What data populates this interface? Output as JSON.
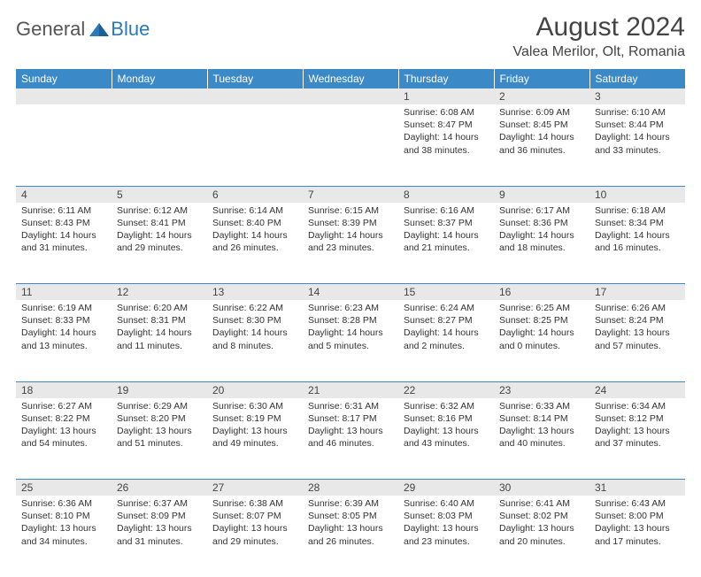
{
  "logo": {
    "general": "General",
    "blue": "Blue"
  },
  "title": "August 2024",
  "location": "Valea Merilor, Olt, Romania",
  "colors": {
    "header_bg": "#3b89c7",
    "header_text": "#ffffff",
    "daynum_bg": "#e8e8e8",
    "border": "#3b89c7",
    "logo_blue": "#2a7ab9"
  },
  "weekdays": [
    "Sunday",
    "Monday",
    "Tuesday",
    "Wednesday",
    "Thursday",
    "Friday",
    "Saturday"
  ],
  "weeks": [
    [
      null,
      null,
      null,
      null,
      {
        "n": "1",
        "sr": "Sunrise: 6:08 AM",
        "ss": "Sunset: 8:47 PM",
        "d1": "Daylight: 14 hours",
        "d2": "and 38 minutes."
      },
      {
        "n": "2",
        "sr": "Sunrise: 6:09 AM",
        "ss": "Sunset: 8:45 PM",
        "d1": "Daylight: 14 hours",
        "d2": "and 36 minutes."
      },
      {
        "n": "3",
        "sr": "Sunrise: 6:10 AM",
        "ss": "Sunset: 8:44 PM",
        "d1": "Daylight: 14 hours",
        "d2": "and 33 minutes."
      }
    ],
    [
      {
        "n": "4",
        "sr": "Sunrise: 6:11 AM",
        "ss": "Sunset: 8:43 PM",
        "d1": "Daylight: 14 hours",
        "d2": "and 31 minutes."
      },
      {
        "n": "5",
        "sr": "Sunrise: 6:12 AM",
        "ss": "Sunset: 8:41 PM",
        "d1": "Daylight: 14 hours",
        "d2": "and 29 minutes."
      },
      {
        "n": "6",
        "sr": "Sunrise: 6:14 AM",
        "ss": "Sunset: 8:40 PM",
        "d1": "Daylight: 14 hours",
        "d2": "and 26 minutes."
      },
      {
        "n": "7",
        "sr": "Sunrise: 6:15 AM",
        "ss": "Sunset: 8:39 PM",
        "d1": "Daylight: 14 hours",
        "d2": "and 23 minutes."
      },
      {
        "n": "8",
        "sr": "Sunrise: 6:16 AM",
        "ss": "Sunset: 8:37 PM",
        "d1": "Daylight: 14 hours",
        "d2": "and 21 minutes."
      },
      {
        "n": "9",
        "sr": "Sunrise: 6:17 AM",
        "ss": "Sunset: 8:36 PM",
        "d1": "Daylight: 14 hours",
        "d2": "and 18 minutes."
      },
      {
        "n": "10",
        "sr": "Sunrise: 6:18 AM",
        "ss": "Sunset: 8:34 PM",
        "d1": "Daylight: 14 hours",
        "d2": "and 16 minutes."
      }
    ],
    [
      {
        "n": "11",
        "sr": "Sunrise: 6:19 AM",
        "ss": "Sunset: 8:33 PM",
        "d1": "Daylight: 14 hours",
        "d2": "and 13 minutes."
      },
      {
        "n": "12",
        "sr": "Sunrise: 6:20 AM",
        "ss": "Sunset: 8:31 PM",
        "d1": "Daylight: 14 hours",
        "d2": "and 11 minutes."
      },
      {
        "n": "13",
        "sr": "Sunrise: 6:22 AM",
        "ss": "Sunset: 8:30 PM",
        "d1": "Daylight: 14 hours",
        "d2": "and 8 minutes."
      },
      {
        "n": "14",
        "sr": "Sunrise: 6:23 AM",
        "ss": "Sunset: 8:28 PM",
        "d1": "Daylight: 14 hours",
        "d2": "and 5 minutes."
      },
      {
        "n": "15",
        "sr": "Sunrise: 6:24 AM",
        "ss": "Sunset: 8:27 PM",
        "d1": "Daylight: 14 hours",
        "d2": "and 2 minutes."
      },
      {
        "n": "16",
        "sr": "Sunrise: 6:25 AM",
        "ss": "Sunset: 8:25 PM",
        "d1": "Daylight: 14 hours",
        "d2": "and 0 minutes."
      },
      {
        "n": "17",
        "sr": "Sunrise: 6:26 AM",
        "ss": "Sunset: 8:24 PM",
        "d1": "Daylight: 13 hours",
        "d2": "and 57 minutes."
      }
    ],
    [
      {
        "n": "18",
        "sr": "Sunrise: 6:27 AM",
        "ss": "Sunset: 8:22 PM",
        "d1": "Daylight: 13 hours",
        "d2": "and 54 minutes."
      },
      {
        "n": "19",
        "sr": "Sunrise: 6:29 AM",
        "ss": "Sunset: 8:20 PM",
        "d1": "Daylight: 13 hours",
        "d2": "and 51 minutes."
      },
      {
        "n": "20",
        "sr": "Sunrise: 6:30 AM",
        "ss": "Sunset: 8:19 PM",
        "d1": "Daylight: 13 hours",
        "d2": "and 49 minutes."
      },
      {
        "n": "21",
        "sr": "Sunrise: 6:31 AM",
        "ss": "Sunset: 8:17 PM",
        "d1": "Daylight: 13 hours",
        "d2": "and 46 minutes."
      },
      {
        "n": "22",
        "sr": "Sunrise: 6:32 AM",
        "ss": "Sunset: 8:16 PM",
        "d1": "Daylight: 13 hours",
        "d2": "and 43 minutes."
      },
      {
        "n": "23",
        "sr": "Sunrise: 6:33 AM",
        "ss": "Sunset: 8:14 PM",
        "d1": "Daylight: 13 hours",
        "d2": "and 40 minutes."
      },
      {
        "n": "24",
        "sr": "Sunrise: 6:34 AM",
        "ss": "Sunset: 8:12 PM",
        "d1": "Daylight: 13 hours",
        "d2": "and 37 minutes."
      }
    ],
    [
      {
        "n": "25",
        "sr": "Sunrise: 6:36 AM",
        "ss": "Sunset: 8:10 PM",
        "d1": "Daylight: 13 hours",
        "d2": "and 34 minutes."
      },
      {
        "n": "26",
        "sr": "Sunrise: 6:37 AM",
        "ss": "Sunset: 8:09 PM",
        "d1": "Daylight: 13 hours",
        "d2": "and 31 minutes."
      },
      {
        "n": "27",
        "sr": "Sunrise: 6:38 AM",
        "ss": "Sunset: 8:07 PM",
        "d1": "Daylight: 13 hours",
        "d2": "and 29 minutes."
      },
      {
        "n": "28",
        "sr": "Sunrise: 6:39 AM",
        "ss": "Sunset: 8:05 PM",
        "d1": "Daylight: 13 hours",
        "d2": "and 26 minutes."
      },
      {
        "n": "29",
        "sr": "Sunrise: 6:40 AM",
        "ss": "Sunset: 8:03 PM",
        "d1": "Daylight: 13 hours",
        "d2": "and 23 minutes."
      },
      {
        "n": "30",
        "sr": "Sunrise: 6:41 AM",
        "ss": "Sunset: 8:02 PM",
        "d1": "Daylight: 13 hours",
        "d2": "and 20 minutes."
      },
      {
        "n": "31",
        "sr": "Sunrise: 6:43 AM",
        "ss": "Sunset: 8:00 PM",
        "d1": "Daylight: 13 hours",
        "d2": "and 17 minutes."
      }
    ]
  ]
}
